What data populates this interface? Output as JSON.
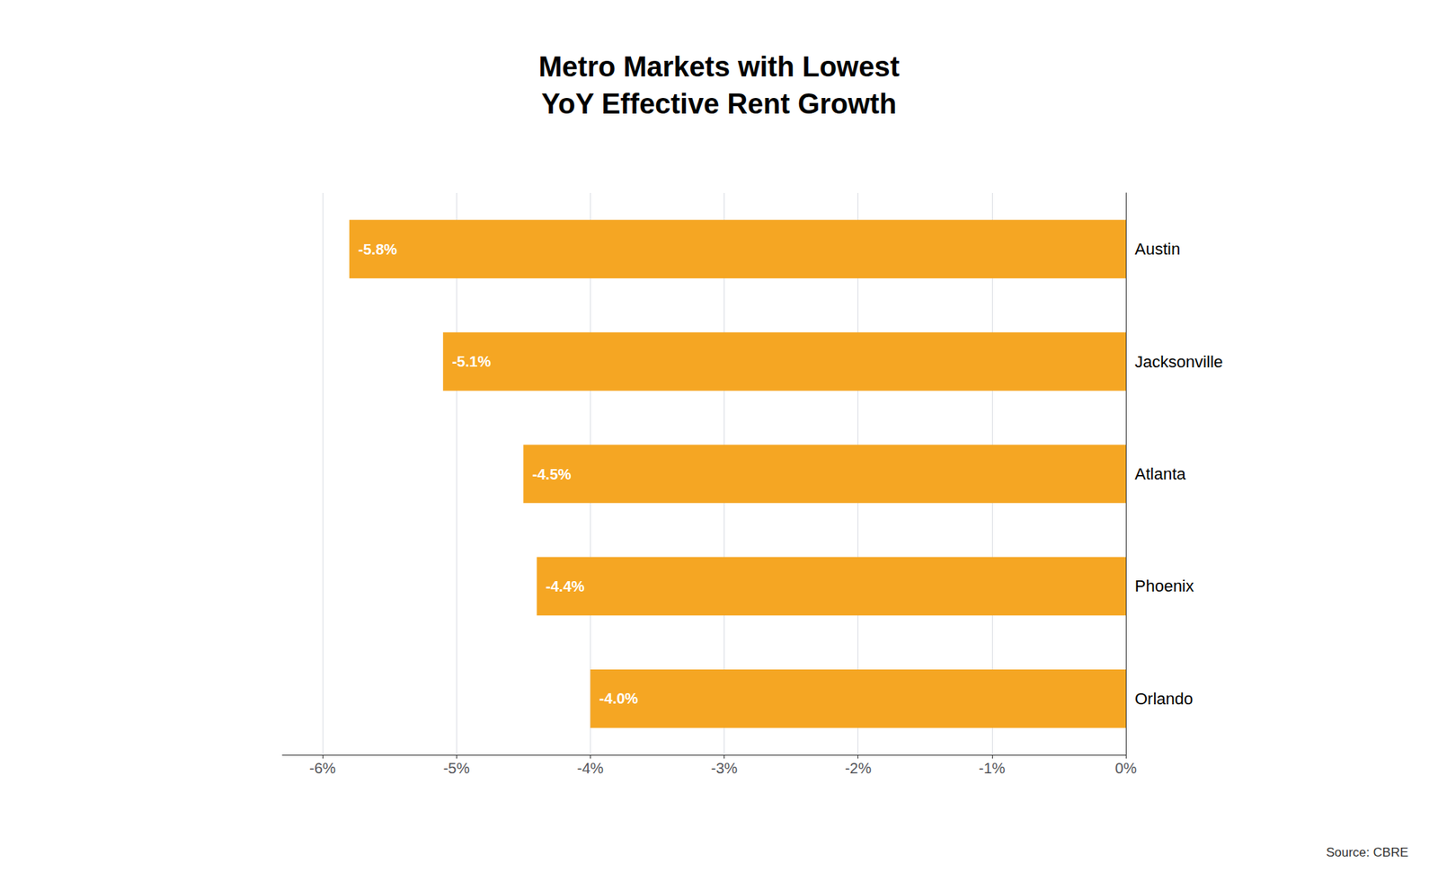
{
  "chart_data": {
    "type": "bar",
    "orientation": "horizontal",
    "title": "Metro Markets with Lowest\nYoY Effective Rent Growth",
    "categories": [
      "Orlando",
      "Phoenix",
      "Atlanta",
      "Jacksonville",
      "Austin"
    ],
    "values": [
      -4.0,
      -4.4,
      -4.5,
      -5.1,
      -5.8
    ],
    "value_labels": [
      "-4.0%",
      "-4.4%",
      "-4.5%",
      "-5.1%",
      "-5.8%"
    ],
    "data_labels": true,
    "color": "#F5A623",
    "xlim": [
      -6.3,
      0.0
    ],
    "xticks": [
      {
        "value": -6,
        "label": "-6%"
      },
      {
        "value": -5,
        "label": "-5%"
      },
      {
        "value": -4,
        "label": "-4%"
      },
      {
        "value": -3,
        "label": "-3%"
      },
      {
        "value": -2,
        "label": "-2%"
      },
      {
        "value": -1,
        "label": "-1%"
      },
      {
        "value": 0,
        "label": "0%"
      }
    ],
    "grid": true,
    "annotations": [
      "Source: CBRE"
    ]
  }
}
